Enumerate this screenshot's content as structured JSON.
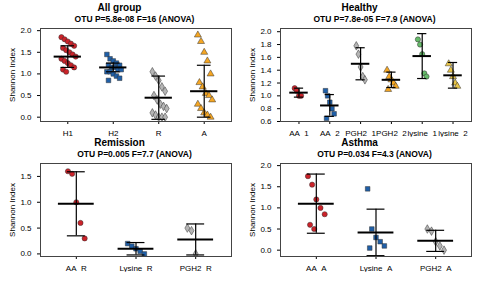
{
  "chart_data": [
    {
      "type": "scatter",
      "title": "All group",
      "subtitle": "OTU P=5.8e-08 F=16 (ANOVA)",
      "ylabel": "Shannon Index",
      "ylim": [
        -0.1,
        2.05
      ],
      "yticks": [
        {
          "value": 0,
          "label": "0.0"
        },
        0.5,
        {
          "value": 1,
          "label": "1.0"
        },
        1.5,
        {
          "value": 2,
          "label": "2.0"
        }
      ],
      "series": [
        {
          "name": "H1",
          "color": "#cc2229",
          "marker": "circle",
          "values": [
            1.85,
            1.8,
            1.75,
            1.7,
            1.65,
            1.6,
            1.55,
            1.5,
            1.45,
            1.4,
            1.35,
            1.3,
            1.25,
            1.2,
            1.15,
            1.1,
            1.05
          ],
          "mean": 1.4,
          "sd": 0.25
        },
        {
          "name": "H2",
          "color": "#1f5fa8",
          "marker": "square",
          "values": [
            1.45,
            1.35,
            1.3,
            1.25,
            1.2,
            1.2,
            1.15,
            1.15,
            1.1,
            1.1,
            1.05,
            1.05,
            1.0,
            0.95,
            0.9,
            0.85
          ],
          "mean": 1.15,
          "sd": 0.1
        },
        {
          "name": "R",
          "color": "#b5b5b5",
          "marker": "diamond",
          "values": [
            1.05,
            0.95,
            0.85,
            0.7,
            0.6,
            0.5,
            0.4,
            0.3,
            0.25,
            0.2,
            0.1,
            0.05,
            0.0,
            0.0,
            0.0
          ],
          "mean": 0.45,
          "sd": 0.5
        },
        {
          "name": "A",
          "color": "#f5a623",
          "marker": "triangle",
          "values": [
            1.9,
            1.75,
            1.5,
            1.3,
            1.0,
            0.8,
            0.7,
            0.55,
            0.5,
            0.4,
            0.3,
            0.2,
            0.1,
            0.05,
            0.0
          ],
          "mean": 0.6,
          "sd": 0.6
        }
      ]
    },
    {
      "type": "scatter",
      "title": "Healthy",
      "subtitle": "OTU P=7.8e-05 F=7.9 (ANOVA)",
      "ylabel": "Shannon Index",
      "ylim": [
        0.6,
        2.05
      ],
      "yticks": [
        0.6,
        0.8,
        {
          "value": 1,
          "label": "1.0"
        },
        1.2,
        1.4,
        1.6,
        1.8,
        {
          "value": 2,
          "label": "2.0"
        }
      ],
      "series": [
        {
          "name": "AA_1",
          "color": "#cc2229",
          "marker": "circle",
          "values": [
            1.12,
            1.08,
            1.0,
            1.0
          ],
          "mean": 1.05,
          "sd": 0.07
        },
        {
          "name": "AA_2",
          "color": "#1f5fa8",
          "marker": "square",
          "values": [
            1.08,
            1.0,
            0.9,
            0.8,
            0.72,
            0.65
          ],
          "mean": 0.85,
          "sd": 0.17
        },
        {
          "name": "PGH2_1",
          "color": "#b5b5b5",
          "marker": "diamond",
          "values": [
            1.78,
            1.65,
            1.45,
            1.3,
            1.25
          ],
          "mean": 1.5,
          "sd": 0.25
        },
        {
          "name": "PGH2_2",
          "color": "#f5a623",
          "marker": "triangle",
          "values": [
            1.4,
            1.3,
            1.25,
            1.2,
            1.15,
            1.1
          ],
          "mean": 1.25,
          "sd": 0.12
        },
        {
          "name": "lysine_1",
          "color": "#66bb6a",
          "marker": "circle",
          "values": [
            1.88,
            1.8,
            1.65,
            1.35,
            1.3
          ],
          "mean": 1.62,
          "sd": 0.35
        },
        {
          "name": "lysine_2",
          "color": "#e8c547",
          "marker": "triangle",
          "values": [
            1.5,
            1.4,
            1.3,
            1.2,
            1.15
          ],
          "mean": 1.32,
          "sd": 0.2
        }
      ]
    },
    {
      "type": "scatter",
      "title": "Remission",
      "subtitle": "OTU P=0.005 F=7.7 (ANOVA)",
      "ylabel": "Shannon Index",
      "ylim": [
        -0.05,
        1.75
      ],
      "yticks": [
        {
          "value": 0,
          "label": "0.0"
        },
        0.5,
        {
          "value": 1,
          "label": "1.0"
        },
        1.5
      ],
      "series": [
        {
          "name": "AA_R",
          "color": "#cc2229",
          "marker": "circle",
          "values": [
            1.6,
            1.55,
            1.0,
            0.6,
            0.3
          ],
          "mean": 0.97,
          "sd": 0.62
        },
        {
          "name": "Lysine_R",
          "color": "#1f5fa8",
          "marker": "square",
          "values": [
            0.2,
            0.15,
            0.1,
            0.05,
            0.0
          ],
          "mean": 0.1,
          "sd": 0.12
        },
        {
          "name": "PGH2_R",
          "color": "#b5b5b5",
          "marker": "diamond",
          "values": [
            0.5,
            0.45,
            0.0
          ],
          "mean": 0.28,
          "sd": 0.3
        }
      ]
    },
    {
      "type": "scatter",
      "title": "Asthma",
      "subtitle": "OTU P=0.034 F=4.3 (ANOVA)",
      "ylabel": "Shannon Index",
      "ylim": [
        -0.15,
        2.05
      ],
      "yticks": [
        {
          "value": 0,
          "label": "0.0"
        },
        0.5,
        {
          "value": 1,
          "label": "1.0"
        },
        1.5,
        {
          "value": 2,
          "label": "2.0"
        }
      ],
      "series": [
        {
          "name": "AA_A",
          "color": "#cc2229",
          "marker": "circle",
          "values": [
            1.75,
            1.55,
            1.2,
            1.0,
            0.85,
            0.6,
            0.5
          ],
          "mean": 1.1,
          "sd": 0.7
        },
        {
          "name": "Lysine_A",
          "color": "#1f5fa8",
          "marker": "square",
          "values": [
            1.45,
            0.5,
            0.3,
            0.2,
            0.1,
            0.05
          ],
          "mean": 0.42,
          "sd": 0.55
        },
        {
          "name": "PGH2_A",
          "color": "#b5b5b5",
          "marker": "diamond",
          "values": [
            0.5,
            0.45,
            0.2,
            0.1,
            0.0
          ],
          "mean": 0.22,
          "sd": 0.25
        }
      ]
    }
  ]
}
